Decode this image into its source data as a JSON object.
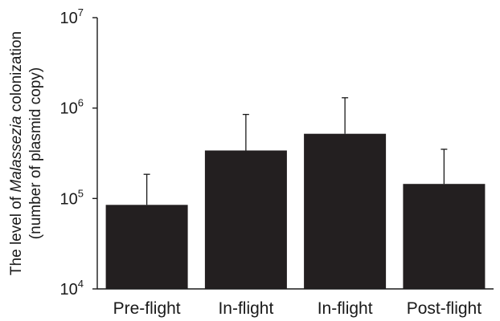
{
  "chart_data": {
    "type": "bar",
    "scale": "log",
    "categories": [
      "Pre-flight",
      "In-flight",
      "In-flight",
      "Post-flight"
    ],
    "values": [
      85000,
      340000,
      520000,
      145000
    ],
    "error_upper": [
      185000,
      850000,
      1300000,
      350000
    ],
    "ylim": [
      10000,
      10000000
    ],
    "y_ticks": [
      {
        "value": 10000,
        "base": "10",
        "exp": "4"
      },
      {
        "value": 100000,
        "base": "10",
        "exp": "5"
      },
      {
        "value": 1000000,
        "base": "10",
        "exp": "6"
      },
      {
        "value": 10000000,
        "base": "10",
        "exp": "7"
      }
    ],
    "ylabel": {
      "line1_prefix": "The level of ",
      "line1_italic": "Malassezia",
      "line1_suffix": " colonization",
      "line2": "(number of plasmid copy)"
    },
    "bar_color": "#231f20",
    "grid": false,
    "legend": "none"
  }
}
